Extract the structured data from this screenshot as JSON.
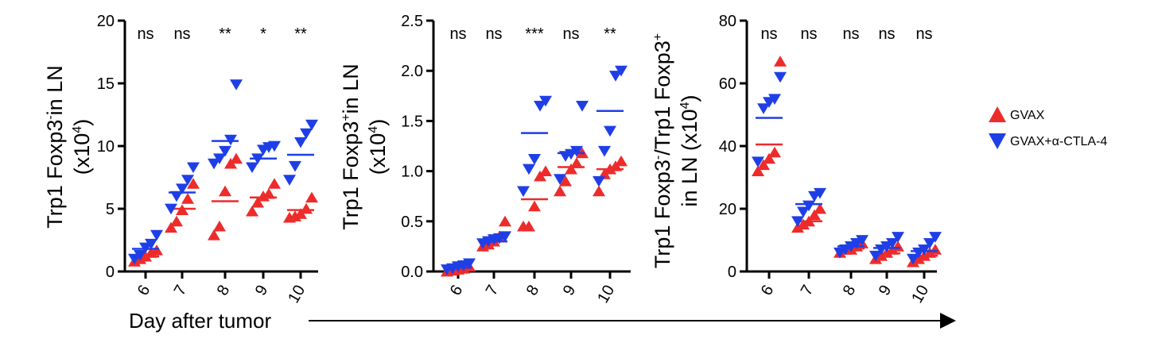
{
  "colors": {
    "gvax": "#ee2b2b",
    "gvax_ctla4": "#1f3fe6",
    "axis": "#000000"
  },
  "legend": {
    "gvax": "GVAX",
    "gvax_ctla4": "GVAX+α-CTLA-4"
  },
  "x_axis_label": "Day after tumor",
  "chart_data": [
    {
      "type": "scatter",
      "ylabel": {
        "main": "Trp1 Foxp3",
        "sup": "-",
        "rest": "in LN",
        "unit_pre": "(x10",
        "unit_exp": "4",
        "unit_post": ")"
      },
      "ylim": [
        0,
        20
      ],
      "yticks": [
        "0",
        "5",
        "10",
        "15",
        "20"
      ],
      "categories": [
        "6",
        "7",
        "8",
        "9",
        "10"
      ],
      "significance": [
        "ns",
        "ns",
        "**",
        "*",
        "**"
      ],
      "series": [
        {
          "name": "GVAX",
          "marker": "up",
          "points": [
            [
              6,
              0.8
            ],
            [
              6,
              1.0
            ],
            [
              6,
              1.2
            ],
            [
              6,
              1.5
            ],
            [
              6,
              1.7
            ],
            [
              7,
              3.5
            ],
            [
              7,
              4.0
            ],
            [
              7,
              4.9
            ],
            [
              7,
              5.8
            ],
            [
              7,
              7.0
            ],
            [
              8,
              2.9
            ],
            [
              8,
              3.6
            ],
            [
              8,
              6.4
            ],
            [
              8,
              8.6
            ],
            [
              8,
              9.0
            ],
            [
              9,
              4.8
            ],
            [
              9,
              5.5
            ],
            [
              9,
              6.0
            ],
            [
              9,
              6.2
            ],
            [
              9,
              7.0
            ],
            [
              10,
              4.3
            ],
            [
              10,
              4.4
            ],
            [
              10,
              4.6
            ],
            [
              10,
              5.0
            ],
            [
              10,
              5.9
            ]
          ],
          "means": [
            1.2,
            5.0,
            5.6,
            5.9,
            4.9
          ]
        },
        {
          "name": "GVAX+α-CTLA-4",
          "marker": "down",
          "points": [
            [
              6,
              1.0
            ],
            [
              6,
              1.3
            ],
            [
              6,
              1.9
            ],
            [
              6,
              2.2
            ],
            [
              6,
              2.9
            ],
            [
              7,
              5.0
            ],
            [
              7,
              6.0
            ],
            [
              7,
              6.6
            ],
            [
              7,
              7.3
            ],
            [
              7,
              8.3
            ],
            [
              8,
              8.6
            ],
            [
              8,
              9.0
            ],
            [
              8,
              9.6
            ],
            [
              8,
              10.5
            ],
            [
              8,
              14.9
            ],
            [
              9,
              8.3
            ],
            [
              9,
              9.0
            ],
            [
              9,
              9.7
            ],
            [
              9,
              9.9
            ],
            [
              9,
              10.0
            ],
            [
              10,
              7.3
            ],
            [
              10,
              8.4
            ],
            [
              10,
              10.3
            ],
            [
              10,
              11.0
            ],
            [
              10,
              11.7
            ]
          ],
          "means": [
            1.8,
            6.3,
            10.4,
            9.0,
            9.3
          ]
        }
      ]
    },
    {
      "type": "scatter",
      "ylabel": {
        "main": "Trp1 Foxp3",
        "sup": "+",
        "rest": "in LN",
        "unit_pre": "(x10",
        "unit_exp": "4",
        "unit_post": ")"
      },
      "ylim": [
        0,
        2.5
      ],
      "yticks": [
        "0.0",
        "0.5",
        "1.0",
        "1.5",
        "2.0",
        "2.5"
      ],
      "categories": [
        "6",
        "7",
        "8",
        "9",
        "10"
      ],
      "significance": [
        "ns",
        "ns",
        "***",
        "ns",
        "**"
      ],
      "series": [
        {
          "name": "GVAX",
          "marker": "up",
          "points": [
            [
              6,
              0.0
            ],
            [
              6,
              0.01
            ],
            [
              6,
              0.02
            ],
            [
              6,
              0.03
            ],
            [
              6,
              0.05
            ],
            [
              7,
              0.25
            ],
            [
              7,
              0.27
            ],
            [
              7,
              0.3
            ],
            [
              7,
              0.35
            ],
            [
              7,
              0.5
            ],
            [
              8,
              0.45
            ],
            [
              8,
              0.45
            ],
            [
              8,
              0.65
            ],
            [
              8,
              0.95
            ],
            [
              8,
              1.0
            ],
            [
              9,
              0.8
            ],
            [
              9,
              0.9
            ],
            [
              9,
              1.02
            ],
            [
              9,
              1.08
            ],
            [
              9,
              1.18
            ],
            [
              10,
              0.8
            ],
            [
              10,
              0.97
            ],
            [
              10,
              1.02
            ],
            [
              10,
              1.05
            ],
            [
              10,
              1.1
            ]
          ],
          "means": [
            0.02,
            0.3,
            0.72,
            1.04,
            1.02
          ]
        },
        {
          "name": "GVAX+α-CTLA-4",
          "marker": "down",
          "points": [
            [
              6,
              0.02
            ],
            [
              6,
              0.03
            ],
            [
              6,
              0.05
            ],
            [
              6,
              0.06
            ],
            [
              6,
              0.08
            ],
            [
              7,
              0.28
            ],
            [
              7,
              0.3
            ],
            [
              7,
              0.32
            ],
            [
              7,
              0.33
            ],
            [
              7,
              0.35
            ],
            [
              8,
              0.8
            ],
            [
              8,
              1.02
            ],
            [
              8,
              1.12
            ],
            [
              8,
              1.65
            ],
            [
              8,
              1.7
            ],
            [
              9,
              0.92
            ],
            [
              9,
              1.15
            ],
            [
              9,
              1.17
            ],
            [
              9,
              1.2
            ],
            [
              9,
              1.65
            ],
            [
              10,
              0.9
            ],
            [
              10,
              1.2
            ],
            [
              10,
              1.4
            ],
            [
              10,
              1.95
            ],
            [
              10,
              2.0
            ]
          ],
          "means": [
            0.04,
            0.3,
            1.38,
            1.18,
            1.6
          ]
        }
      ]
    },
    {
      "type": "scatter",
      "ylabel": {
        "line1_pre": "Trp1 Foxp3",
        "line1_sup1": "-",
        "line1_mid": "/Trp1 Foxp3",
        "line1_sup2": "+",
        "line2_pre": "in LN  (x10",
        "line2_exp": "4",
        "line2_post": ")"
      },
      "ylim": [
        0,
        80
      ],
      "yticks": [
        "0",
        "20",
        "40",
        "60",
        "80"
      ],
      "categories": [
        "6",
        "7",
        "8",
        "9",
        "10"
      ],
      "significance": [
        "ns",
        "ns",
        "ns",
        "ns",
        "ns"
      ],
      "series": [
        {
          "name": "GVAX",
          "marker": "up",
          "points": [
            [
              6,
              32
            ],
            [
              6,
              34
            ],
            [
              6,
              36
            ],
            [
              6,
              38
            ],
            [
              6,
              67
            ],
            [
              7,
              14
            ],
            [
              7,
              15
            ],
            [
              7,
              16
            ],
            [
              7,
              18
            ],
            [
              7,
              20
            ],
            [
              8,
              6
            ],
            [
              8,
              7
            ],
            [
              8,
              7
            ],
            [
              8,
              8
            ],
            [
              8,
              9
            ],
            [
              9,
              4
            ],
            [
              9,
              5
            ],
            [
              9,
              6
            ],
            [
              9,
              7
            ],
            [
              9,
              8
            ],
            [
              10,
              3
            ],
            [
              10,
              4
            ],
            [
              10,
              5
            ],
            [
              10,
              6
            ],
            [
              10,
              7
            ]
          ],
          "means": [
            40.5,
            16.0,
            7.3,
            5.8,
            5.0
          ]
        },
        {
          "name": "GVAX+α-CTLA-4",
          "marker": "down",
          "points": [
            [
              6,
              35
            ],
            [
              6,
              52
            ],
            [
              6,
              54
            ],
            [
              6,
              55
            ],
            [
              6,
              62
            ],
            [
              7,
              16
            ],
            [
              7,
              19
            ],
            [
              7,
              21
            ],
            [
              7,
              24
            ],
            [
              7,
              25
            ],
            [
              8,
              6
            ],
            [
              8,
              7
            ],
            [
              8,
              8
            ],
            [
              8,
              9
            ],
            [
              8,
              10
            ],
            [
              9,
              5
            ],
            [
              9,
              7
            ],
            [
              9,
              8
            ],
            [
              9,
              9
            ],
            [
              9,
              11
            ],
            [
              10,
              4
            ],
            [
              10,
              6
            ],
            [
              10,
              7
            ],
            [
              10,
              9
            ],
            [
              10,
              11
            ]
          ],
          "means": [
            49.0,
            21.5,
            8.0,
            7.5,
            6.5
          ]
        }
      ]
    }
  ]
}
